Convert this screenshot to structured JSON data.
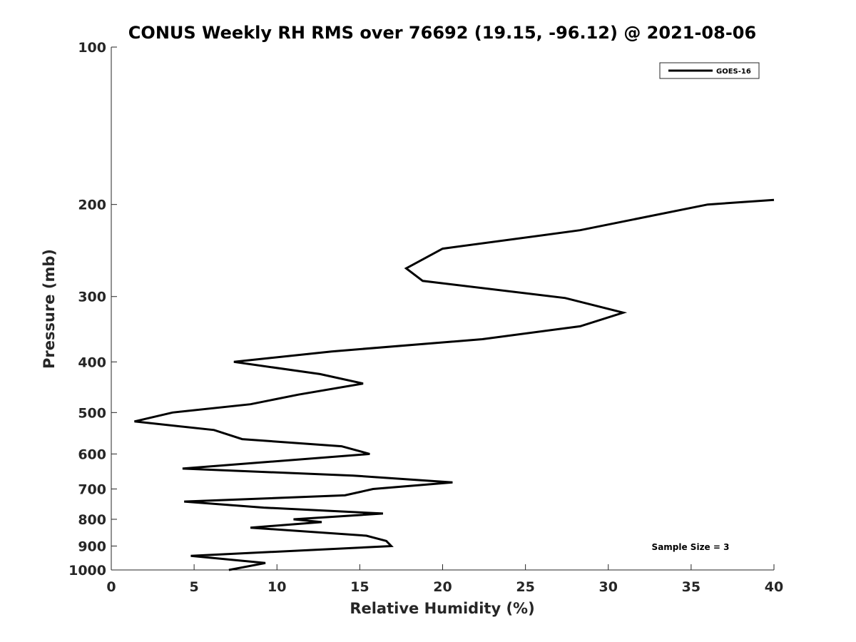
{
  "chart_data": {
    "type": "line",
    "title": "CONUS Weekly RH RMS over 76692 (19.15, -96.12) @ 2021-08-06",
    "xlabel": "Relative Humidity (%)",
    "ylabel": "Pressure (mb)",
    "xlim": [
      0,
      40
    ],
    "ylim": [
      100,
      1000
    ],
    "y_scale": "log",
    "y_reversed": true,
    "x_ticks": [
      "0",
      "5",
      "10",
      "15",
      "20",
      "25",
      "30",
      "35",
      "40"
    ],
    "y_ticks": [
      "100",
      "200",
      "300",
      "400",
      "500",
      "600",
      "700",
      "800",
      "900",
      "1000"
    ],
    "grid": false,
    "legend_position": "top-right",
    "annotation": "Sample Size = 3",
    "series": [
      {
        "name": "GOES-16",
        "color": "#000000",
        "x": [
          40.0,
          36.0,
          28.3,
          20.0,
          17.8,
          18.8,
          27.4,
          30.9,
          28.3,
          22.4,
          13.3,
          7.4,
          12.6,
          15.2,
          11.3,
          8.4,
          3.7,
          1.4,
          6.2,
          7.9,
          13.9,
          15.6,
          4.3,
          14.6,
          20.6,
          15.8,
          14.1,
          4.4,
          9.2,
          16.4,
          11.0,
          12.7,
          8.4,
          15.4,
          16.6,
          16.9,
          4.8,
          9.3,
          7.1
        ],
        "y": [
          196,
          200,
          224,
          243,
          265,
          280,
          302,
          322,
          342,
          362,
          382,
          400,
          422,
          440,
          462,
          482,
          500,
          520,
          540,
          562,
          580,
          600,
          640,
          660,
          680,
          700,
          720,
          740,
          760,
          780,
          800,
          810,
          830,
          860,
          880,
          900,
          940,
          970,
          1000
        ]
      }
    ]
  }
}
